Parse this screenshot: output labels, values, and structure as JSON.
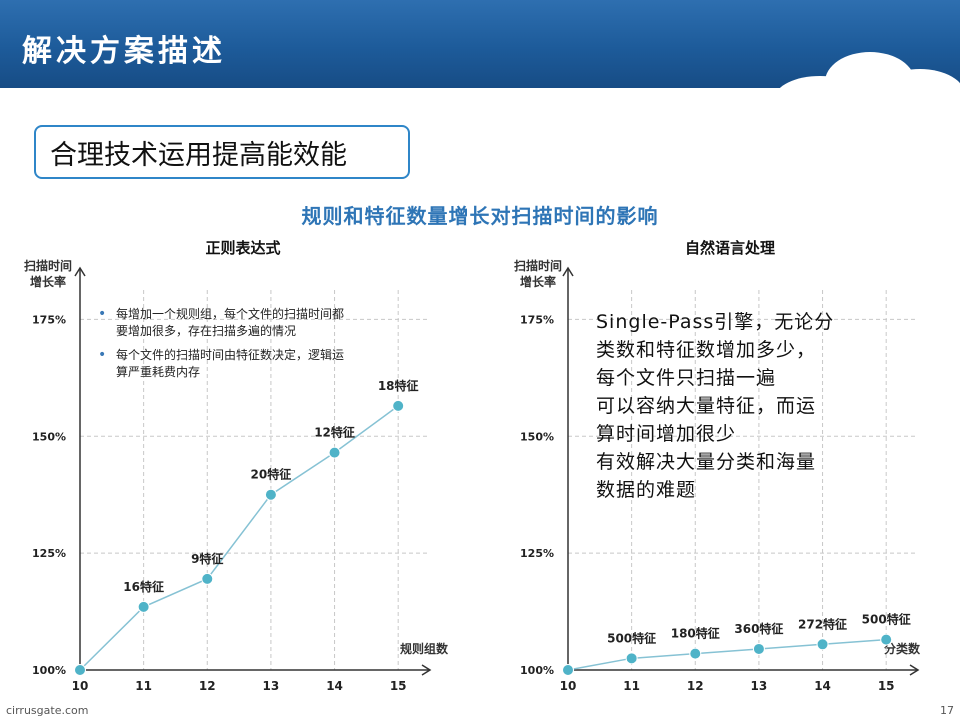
{
  "header": {
    "title": "解决方案描述"
  },
  "subtitle_box": "合理技术运用提高能效能",
  "main_title": "规则和特征数量增长对扫描时间的影响",
  "footer": {
    "site": "cirrusgate.com",
    "page": "17"
  },
  "colors": {
    "header": "#1d5b9a",
    "accent": "#2e75b6",
    "line": "#86c2d4",
    "marker": "#4fb3c8"
  },
  "left": {
    "notes": [
      "每增加一个规则组，每个文件的扫描时间都要增加很多，存在扫描多遍的情况",
      "每个文件的扫描时间由特征数决定，逻辑运算严重耗费内存"
    ]
  },
  "right": {
    "text_lines": [
      "Single-Pass引擎，无论分",
      "类数和特征数增加多少，",
      "每个文件只扫描一遍",
      "可以容纳大量特征，而运",
      "算时间增加很少",
      "有效解决大量分类和海量",
      "数据的难题"
    ]
  },
  "chart_data": [
    {
      "type": "line",
      "title": "正则表达式",
      "ylabel": [
        "扫描时间",
        "增长率"
      ],
      "xlabel": "规则组数",
      "x": [
        10,
        11,
        12,
        13,
        14,
        15
      ],
      "y": [
        100,
        113.5,
        119.5,
        137.5,
        146.5,
        156.5
      ],
      "point_labels": [
        "",
        "16特征",
        "9特征",
        "20特征",
        "12特征",
        "18特征"
      ],
      "yticks": [
        100,
        125,
        150,
        175
      ],
      "ytick_labels": [
        "100%",
        "125%",
        "150%",
        "175%"
      ],
      "ylim": [
        100,
        186
      ],
      "xlim": [
        10,
        15.5
      ],
      "grid": true
    },
    {
      "type": "line",
      "title": "自然语言处理",
      "ylabel": [
        "扫描时间",
        "增长率"
      ],
      "xlabel": "分类数",
      "x": [
        10,
        11,
        12,
        13,
        14,
        15
      ],
      "y": [
        100,
        102.5,
        103.5,
        104.5,
        105.5,
        106.5
      ],
      "point_labels": [
        "",
        "500特征",
        "180特征",
        "360特征",
        "272特征",
        "500特征"
      ],
      "yticks": [
        100,
        125,
        150,
        175
      ],
      "ytick_labels": [
        "100%",
        "125%",
        "150%",
        "175%"
      ],
      "ylim": [
        100,
        186
      ],
      "xlim": [
        10,
        15.5
      ],
      "grid": true
    }
  ]
}
